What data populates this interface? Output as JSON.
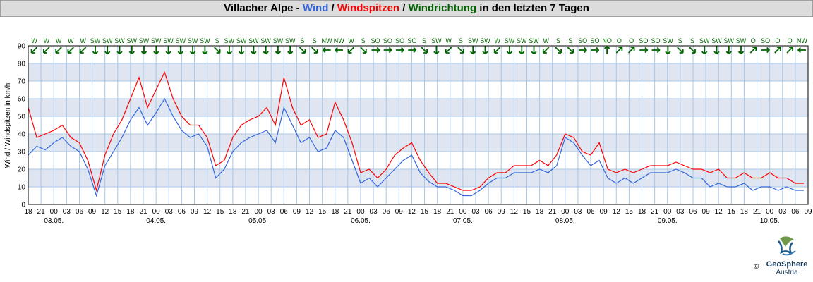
{
  "title": {
    "station": "Villacher Alpe - ",
    "wind": "Wind",
    "sep1": " / ",
    "gusts": "Windspitzen",
    "sep2": " / ",
    "direction": "Windrichtung",
    "suffix": " in den letzten 7 Tagen"
  },
  "colors": {
    "wind": "#3366dd",
    "gusts": "#ff0000",
    "direction": "#006400",
    "band": "#dfe6f1",
    "grid": "#a8c8e8"
  },
  "logo": {
    "name": "GeoSphere",
    "sub": "Austria",
    "copyright": "©"
  },
  "chart_data": {
    "type": "line",
    "ylabel": "Wind / Windspitzen in km/h",
    "ylim": [
      0,
      90
    ],
    "yticks": [
      0,
      10,
      20,
      30,
      40,
      50,
      60,
      70,
      80,
      90
    ],
    "xlim_hours": [
      0,
      183
    ],
    "x_hour_labels": [
      "18",
      "21",
      "00",
      "03",
      "06",
      "09",
      "12",
      "15",
      "18",
      "21",
      "00",
      "03",
      "06",
      "09",
      "12",
      "15",
      "18",
      "21",
      "00",
      "03",
      "06",
      "09",
      "12",
      "15",
      "18",
      "21",
      "00",
      "03",
      "06",
      "09",
      "12",
      "15",
      "18",
      "21",
      "00",
      "03",
      "06",
      "09",
      "12",
      "15",
      "18",
      "21",
      "00",
      "03",
      "06",
      "09",
      "12",
      "15",
      "18",
      "21",
      "00",
      "03",
      "06",
      "09",
      "12",
      "15",
      "18",
      "21",
      "00",
      "03",
      "06",
      "09"
    ],
    "x_date_labels": [
      {
        "label": "03.05.",
        "hour": 6
      },
      {
        "label": "04.05.",
        "hour": 30
      },
      {
        "label": "05.05.",
        "hour": 54
      },
      {
        "label": "06.05.",
        "hour": 78
      },
      {
        "label": "07.05.",
        "hour": 102
      },
      {
        "label": "08.05.",
        "hour": 126
      },
      {
        "label": "09.05.",
        "hour": 150
      },
      {
        "label": "10.05.",
        "hour": 174
      }
    ],
    "series": [
      {
        "name": "Wind",
        "x_hours": [
          0,
          2,
          4,
          6,
          8,
          10,
          12,
          14,
          16,
          18,
          20,
          22,
          24,
          26,
          28,
          30,
          32,
          34,
          36,
          38,
          40,
          42,
          44,
          46,
          48,
          50,
          52,
          54,
          56,
          58,
          60,
          62,
          64,
          66,
          68,
          70,
          72,
          74,
          76,
          78,
          80,
          82,
          84,
          86,
          88,
          90,
          92,
          94,
          96,
          98,
          100,
          102,
          104,
          106,
          108,
          110,
          112,
          114,
          116,
          118,
          120,
          122,
          124,
          126,
          128,
          130,
          132,
          134,
          136,
          138,
          140,
          142,
          144,
          146,
          148,
          150,
          152,
          154,
          156,
          158,
          160,
          162,
          164,
          166,
          168,
          170,
          172,
          174,
          176,
          178,
          180,
          182
        ],
        "values": [
          28,
          33,
          31,
          35,
          38,
          33,
          30,
          20,
          5,
          22,
          30,
          38,
          48,
          55,
          45,
          52,
          60,
          50,
          42,
          38,
          40,
          33,
          15,
          20,
          30,
          35,
          38,
          40,
          42,
          35,
          55,
          45,
          35,
          38,
          30,
          32,
          42,
          38,
          25,
          12,
          15,
          10,
          15,
          20,
          25,
          28,
          18,
          13,
          10,
          10,
          8,
          5,
          5,
          8,
          12,
          15,
          15,
          18,
          18,
          18,
          20,
          18,
          22,
          38,
          35,
          28,
          22,
          25,
          15,
          12,
          15,
          12,
          15,
          18,
          18,
          18,
          20,
          18,
          15,
          15,
          10,
          12,
          10,
          10,
          12,
          8,
          10,
          10,
          8,
          10,
          8,
          8
        ]
      },
      {
        "name": "Windspitzen",
        "x_hours": [
          0,
          2,
          4,
          6,
          8,
          10,
          12,
          14,
          16,
          18,
          20,
          22,
          24,
          26,
          28,
          30,
          32,
          34,
          36,
          38,
          40,
          42,
          44,
          46,
          48,
          50,
          52,
          54,
          56,
          58,
          60,
          62,
          64,
          66,
          68,
          70,
          72,
          74,
          76,
          78,
          80,
          82,
          84,
          86,
          88,
          90,
          92,
          94,
          96,
          98,
          100,
          102,
          104,
          106,
          108,
          110,
          112,
          114,
          116,
          118,
          120,
          122,
          124,
          126,
          128,
          130,
          132,
          134,
          136,
          138,
          140,
          142,
          144,
          146,
          148,
          150,
          152,
          154,
          156,
          158,
          160,
          162,
          164,
          166,
          168,
          170,
          172,
          174,
          176,
          178,
          180,
          182
        ],
        "values": [
          55,
          38,
          40,
          42,
          45,
          38,
          35,
          25,
          8,
          28,
          40,
          48,
          60,
          72,
          55,
          65,
          75,
          60,
          50,
          45,
          45,
          38,
          22,
          25,
          38,
          45,
          48,
          50,
          55,
          45,
          72,
          55,
          45,
          48,
          38,
          40,
          58,
          48,
          35,
          18,
          20,
          15,
          20,
          28,
          32,
          35,
          25,
          18,
          12,
          12,
          10,
          8,
          8,
          10,
          15,
          18,
          18,
          22,
          22,
          22,
          25,
          22,
          28,
          40,
          38,
          30,
          28,
          35,
          20,
          18,
          20,
          18,
          20,
          22,
          22,
          22,
          24,
          22,
          20,
          20,
          18,
          20,
          15,
          15,
          18,
          15,
          15,
          18,
          15,
          15,
          12,
          12
        ]
      }
    ],
    "directions": [
      "W",
      "W",
      "W",
      "W",
      "W",
      "SW",
      "SW",
      "SW",
      "SW",
      "SW",
      "SW",
      "SW",
      "SW",
      "SW",
      "SW",
      "S",
      "SW",
      "SW",
      "SW",
      "SW",
      "SW",
      "SW",
      "S",
      "S",
      "NW",
      "NW",
      "W",
      "S",
      "SO",
      "SO",
      "SO",
      "SO",
      "S",
      "SW",
      "W",
      "S",
      "SW",
      "SW",
      "W",
      "SW",
      "SW",
      "SW",
      "W",
      "S",
      "S",
      "SO",
      "SO",
      "NO",
      "O",
      "O",
      "SO",
      "SO",
      "SW",
      "S",
      "S",
      "SW",
      "SW",
      "SW",
      "SW",
      "O",
      "SO",
      "O",
      "O",
      "NW"
    ]
  }
}
